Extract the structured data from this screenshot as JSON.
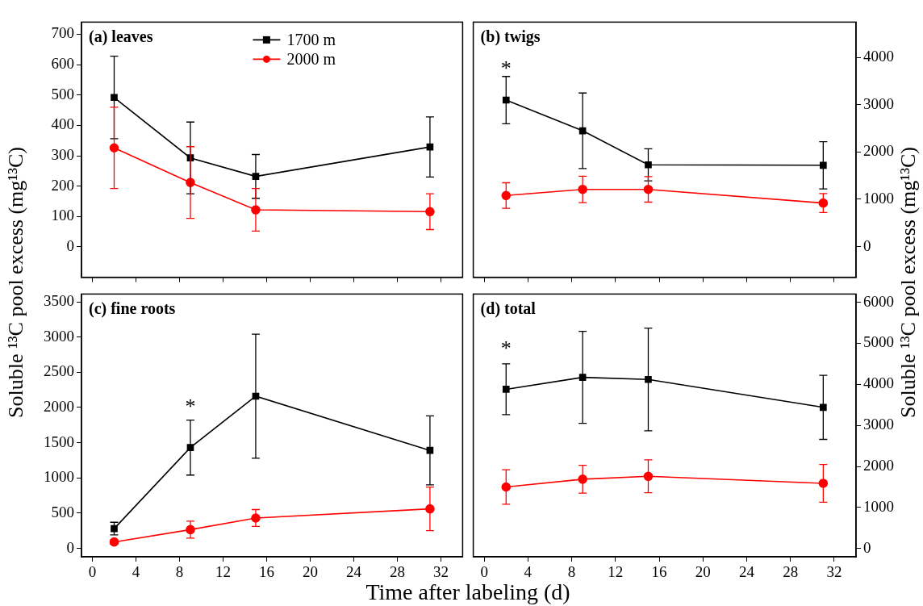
{
  "x_label": "Time after labeling (d)",
  "y_label": "Soluble ¹³C pool excess (mg¹³C)",
  "chart_data": [
    {
      "type": "line",
      "title": "(a) leaves",
      "x": [
        2,
        9,
        15,
        31
      ],
      "xlim": [
        -1,
        34
      ],
      "xticks": [
        0,
        4,
        8,
        12,
        16,
        20,
        24,
        28,
        32
      ],
      "ylim": [
        -100,
        740
      ],
      "yticks": [
        0,
        100,
        200,
        300,
        400,
        500,
        600,
        700
      ],
      "grid": false,
      "tick_labels": "y",
      "legend": "upper right",
      "series": [
        {
          "name": "1700 m",
          "color": "#000000",
          "marker": "square",
          "values": [
            492,
            293,
            232,
            329
          ],
          "errors": [
            136,
            118,
            72,
            99
          ]
        },
        {
          "name": "2000 m",
          "color": "#ff0000",
          "marker": "circle",
          "values": [
            326,
            212,
            122,
            116
          ],
          "errors": [
            134,
            118,
            70,
            59
          ]
        }
      ]
    },
    {
      "type": "line",
      "title": "(b) twigs",
      "x": [
        2,
        9,
        15,
        31
      ],
      "xlim": [
        -1,
        34
      ],
      "xticks": [
        0,
        4,
        8,
        12,
        16,
        20,
        24,
        28,
        32
      ],
      "ylim": [
        -650,
        4750
      ],
      "yticks": [
        0,
        1000,
        2000,
        3000,
        4000
      ],
      "grid": false,
      "tick_labels": "y",
      "series": [
        {
          "name": "1700 m",
          "color": "#000000",
          "marker": "square",
          "values": [
            3100,
            2450,
            1730,
            1720
          ],
          "errors": [
            500,
            800,
            340,
            500
          ]
        },
        {
          "name": "2000 m",
          "color": "#ff0000",
          "marker": "circle",
          "values": [
            1080,
            1210,
            1210,
            920
          ],
          "errors": [
            270,
            280,
            270,
            200
          ]
        }
      ],
      "annotations": [
        {
          "x": 2,
          "y": 3750,
          "text": "*"
        }
      ]
    },
    {
      "type": "line",
      "title": "(c) fine roots",
      "x": [
        2,
        9,
        15,
        31
      ],
      "xlim": [
        -1,
        34
      ],
      "xticks": [
        0,
        4,
        8,
        12,
        16,
        20,
        24,
        28,
        32
      ],
      "ylim": [
        -120,
        3610
      ],
      "yticks": [
        0,
        500,
        1000,
        1500,
        2000,
        2500,
        3000,
        3500
      ],
      "grid": false,
      "series": [
        {
          "name": "1700 m",
          "color": "#000000",
          "marker": "square",
          "values": [
            280,
            1430,
            2160,
            1390
          ],
          "errors": [
            90,
            390,
            880,
            490
          ]
        },
        {
          "name": "2000 m",
          "color": "#ff0000",
          "marker": "circle",
          "values": [
            90,
            265,
            430,
            560
          ],
          "errors": [
            30,
            120,
            120,
            310
          ]
        }
      ],
      "annotations": [
        {
          "x": 9,
          "y": 2000,
          "text": "*"
        }
      ]
    },
    {
      "type": "line",
      "title": "(d) total",
      "x": [
        2,
        9,
        15,
        31
      ],
      "xlim": [
        -1,
        34
      ],
      "xticks": [
        0,
        4,
        8,
        12,
        16,
        20,
        24,
        28,
        32
      ],
      "ylim": [
        -200,
        6200
      ],
      "yticks": [
        0,
        1000,
        2000,
        3000,
        4000,
        5000,
        6000
      ],
      "grid": false,
      "series": [
        {
          "name": "1700 m",
          "color": "#000000",
          "marker": "square",
          "values": [
            3880,
            4170,
            4120,
            3440
          ],
          "errors": [
            620,
            1120,
            1250,
            780
          ]
        },
        {
          "name": "2000 m",
          "color": "#ff0000",
          "marker": "circle",
          "values": [
            1500,
            1690,
            1760,
            1590
          ],
          "errors": [
            420,
            340,
            400,
            460
          ]
        }
      ],
      "annotations": [
        {
          "x": 2,
          "y": 4850,
          "text": "*"
        }
      ]
    }
  ]
}
